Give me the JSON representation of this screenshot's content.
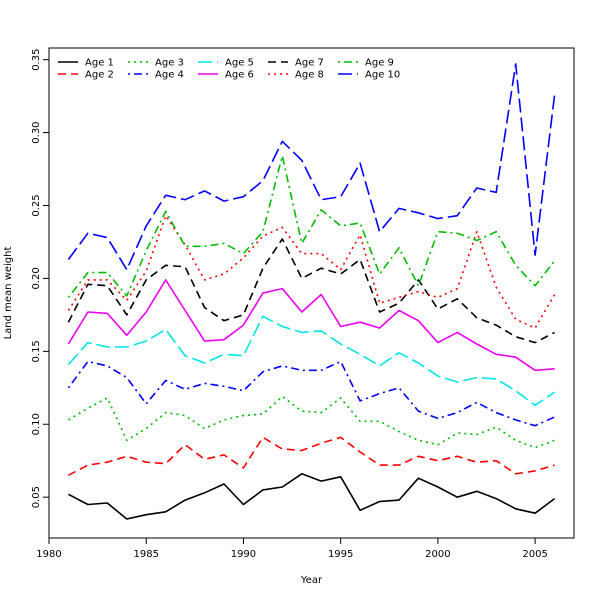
{
  "chart_data": {
    "type": "line",
    "title": "",
    "xlabel": "Year",
    "ylabel": "Land mean weight",
    "xlim": [
      1980,
      2007
    ],
    "ylim": [
      0.022,
      0.358
    ],
    "xticks": [
      "1980",
      "1985",
      "1990",
      "1995",
      "2000",
      "2005"
    ],
    "yticks": [
      "0.05",
      "0.10",
      "0.15",
      "0.20",
      "0.25",
      "0.30",
      "0.35"
    ],
    "legend_position": "top-left",
    "grid": false,
    "x": [
      1981,
      1982,
      1983,
      1984,
      1985,
      1986,
      1987,
      1988,
      1989,
      1990,
      1991,
      1992,
      1993,
      1994,
      1995,
      1996,
      1997,
      1998,
      1999,
      2000,
      2001,
      2002,
      2003,
      2004,
      2005,
      2006
    ],
    "series": [
      {
        "name": "Age 1",
        "color": "#000000",
        "dash": "solid",
        "values": [
          0.052,
          0.045,
          0.046,
          0.035,
          0.038,
          0.04,
          0.048,
          0.053,
          0.059,
          0.045,
          0.055,
          0.057,
          0.066,
          0.061,
          0.064,
          0.041,
          0.047,
          0.048,
          0.063,
          0.057,
          0.05,
          0.054,
          0.049,
          0.042,
          0.039,
          0.049
        ]
      },
      {
        "name": "Age 2",
        "color": "#ff0000",
        "dash": "dashed",
        "values": [
          0.065,
          0.072,
          0.074,
          0.078,
          0.074,
          0.073,
          0.086,
          0.076,
          0.079,
          0.07,
          0.091,
          0.083,
          0.082,
          0.087,
          0.091,
          0.081,
          0.072,
          0.072,
          0.078,
          0.075,
          0.078,
          0.074,
          0.075,
          0.066,
          0.068,
          0.072
        ]
      },
      {
        "name": "Age 3",
        "color": "#00bb00",
        "dash": "dotted",
        "values": [
          0.103,
          0.111,
          0.118,
          0.089,
          0.097,
          0.108,
          0.106,
          0.097,
          0.103,
          0.106,
          0.107,
          0.119,
          0.109,
          0.108,
          0.118,
          0.102,
          0.102,
          0.095,
          0.089,
          0.086,
          0.094,
          0.093,
          0.098,
          0.089,
          0.084,
          0.089
        ]
      },
      {
        "name": "Age 4",
        "color": "#0000ff",
        "dash": "dashdot",
        "values": [
          0.125,
          0.143,
          0.14,
          0.132,
          0.114,
          0.13,
          0.124,
          0.128,
          0.126,
          0.123,
          0.136,
          0.14,
          0.137,
          0.137,
          0.143,
          0.116,
          0.121,
          0.125,
          0.109,
          0.104,
          0.108,
          0.115,
          0.108,
          0.103,
          0.099,
          0.105
        ]
      },
      {
        "name": "Age 5",
        "color": "#00e5e5",
        "dash": "longdash",
        "values": [
          0.141,
          0.156,
          0.153,
          0.153,
          0.157,
          0.165,
          0.147,
          0.142,
          0.148,
          0.147,
          0.174,
          0.167,
          0.163,
          0.164,
          0.155,
          0.148,
          0.14,
          0.149,
          0.142,
          0.133,
          0.129,
          0.132,
          0.131,
          0.123,
          0.113,
          0.122
        ]
      },
      {
        "name": "Age 6",
        "color": "#ee00ee",
        "dash": "solid",
        "values": [
          0.155,
          0.177,
          0.176,
          0.161,
          0.177,
          0.199,
          0.178,
          0.157,
          0.158,
          0.168,
          0.19,
          0.193,
          0.177,
          0.189,
          0.167,
          0.17,
          0.166,
          0.178,
          0.171,
          0.156,
          0.163,
          0.155,
          0.148,
          0.146,
          0.137,
          0.138
        ]
      },
      {
        "name": "Age 7",
        "color": "#000000",
        "dash": "dashed",
        "values": [
          0.17,
          0.196,
          0.195,
          0.175,
          0.199,
          0.209,
          0.208,
          0.18,
          0.171,
          0.175,
          0.207,
          0.227,
          0.2,
          0.207,
          0.203,
          0.213,
          0.177,
          0.183,
          0.199,
          0.179,
          0.186,
          0.173,
          0.168,
          0.16,
          0.156,
          0.163
        ]
      },
      {
        "name": "Age 8",
        "color": "#ff0000",
        "dash": "dotted",
        "values": [
          0.178,
          0.199,
          0.199,
          0.185,
          0.205,
          0.243,
          0.223,
          0.199,
          0.203,
          0.214,
          0.229,
          0.235,
          0.217,
          0.217,
          0.206,
          0.23,
          0.183,
          0.187,
          0.191,
          0.187,
          0.193,
          0.232,
          0.194,
          0.172,
          0.166,
          0.189
        ]
      },
      {
        "name": "Age 9",
        "color": "#00bb00",
        "dash": "dashdot",
        "values": [
          0.187,
          0.204,
          0.204,
          0.188,
          0.219,
          0.246,
          0.222,
          0.222,
          0.224,
          0.217,
          0.232,
          0.284,
          0.224,
          0.247,
          0.236,
          0.238,
          0.203,
          0.221,
          0.195,
          0.232,
          0.231,
          0.226,
          0.232,
          0.209,
          0.195,
          0.212
        ]
      },
      {
        "name": "Age 10",
        "color": "#0000ff",
        "dash": "longdash",
        "values": [
          0.213,
          0.231,
          0.228,
          0.206,
          0.236,
          0.257,
          0.254,
          0.26,
          0.253,
          0.256,
          0.267,
          0.294,
          0.281,
          0.254,
          0.256,
          0.279,
          0.232,
          0.248,
          0.245,
          0.241,
          0.243,
          0.262,
          0.259,
          0.347,
          0.216,
          0.326
        ]
      }
    ]
  }
}
